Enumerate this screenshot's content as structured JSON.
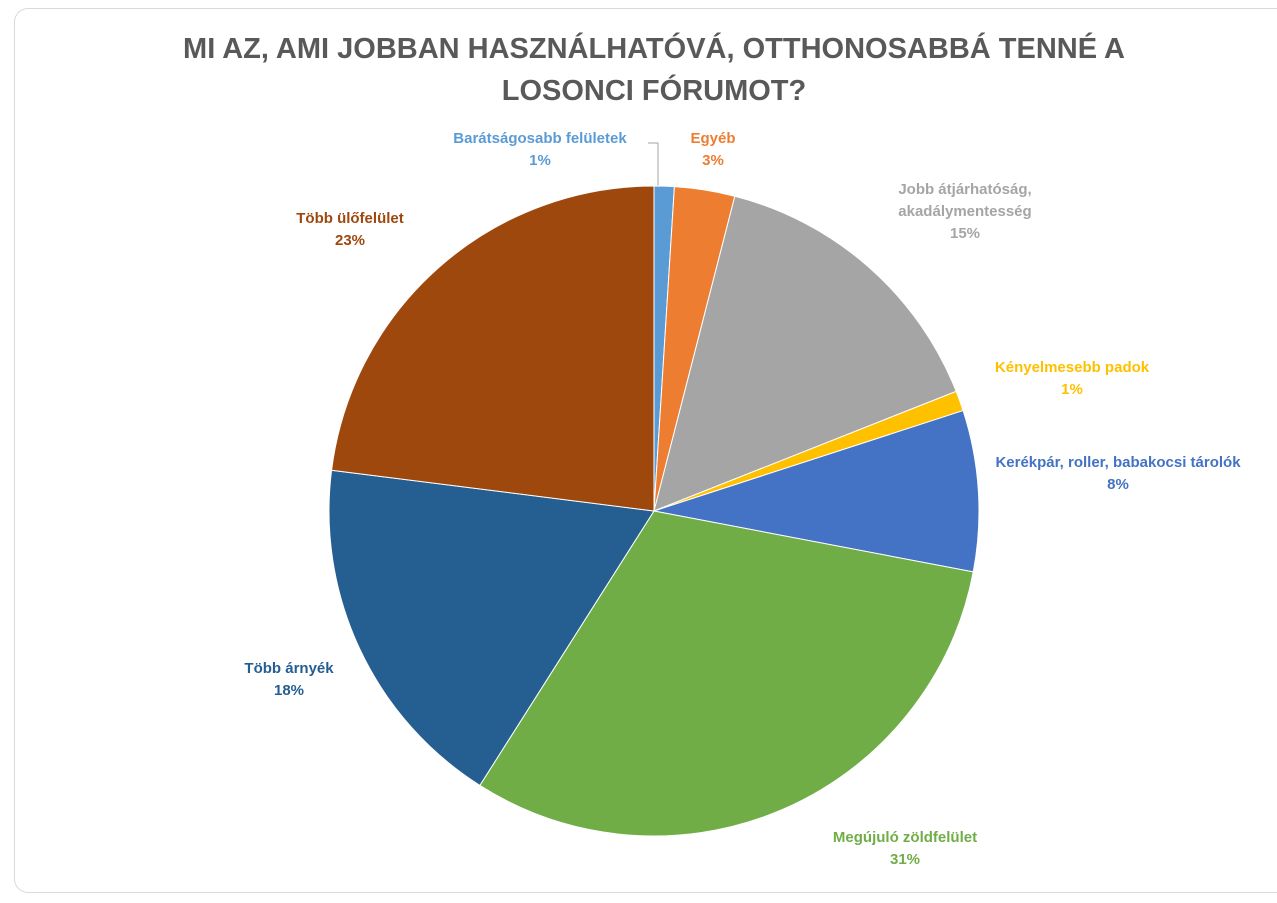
{
  "chart_data": {
    "type": "pie",
    "title": "MI AZ, AMI JOBBAN HASZNÁLHATÓVÁ, OTTHONOSABBÁ TENNÉ A LOSONCI FÓRUMOT?",
    "categories": [
      "Barátságosabb felületek",
      "Egyéb",
      "Jobb átjárhatóság, akadálymentesség",
      "Kényelmesebb padok",
      "Kerékpár, roller, babakocsi tárolók",
      "Megújuló zöldfelület",
      "Több árnyék",
      "Több ülőfelület"
    ],
    "values": [
      1,
      3,
      15,
      1,
      8,
      31,
      18,
      23
    ],
    "value_labels": [
      "1%",
      "3%",
      "15%",
      "1%",
      "8%",
      "31%",
      "18%",
      "23%"
    ],
    "colors": [
      "#5b9bd5",
      "#ed7d31",
      "#a5a5a5",
      "#ffc000",
      "#4472c4",
      "#70ad47",
      "#255e91",
      "#9e480e"
    ]
  }
}
